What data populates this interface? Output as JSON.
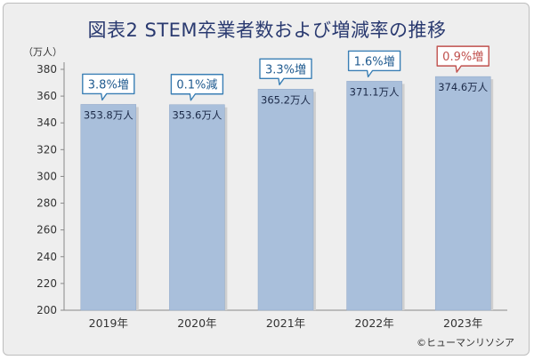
{
  "title": "図表2 STEM卒業者数および増減率の推移",
  "unit_label": "（万人）",
  "credit": "©ヒューマンリソシア",
  "colors": {
    "bar": "#a9bfdb",
    "bar_edge": "#8fa7c8",
    "callout_border": "#3a7fb5",
    "callout_highlight_border": "#c0504d",
    "callout_text": "#1f5a8f",
    "callout_highlight_text": "#c0504d",
    "axis": "#888888",
    "background": "#eeeeee"
  },
  "chart_data": {
    "type": "bar",
    "categories": [
      "2019年",
      "2020年",
      "2021年",
      "2022年",
      "2023年"
    ],
    "values": [
      353.8,
      353.6,
      365.2,
      371.1,
      374.6
    ],
    "value_labels": [
      "353.8万人",
      "353.6万人",
      "365.2万人",
      "371.1万人",
      "374.6万人"
    ],
    "change_labels": [
      "3.8%増",
      "0.1%減",
      "3.3%増",
      "1.6%増",
      "0.9%増"
    ],
    "highlight_index": 4,
    "ylim": [
      200,
      380
    ],
    "yticks": [
      200,
      220,
      240,
      260,
      280,
      300,
      320,
      340,
      360,
      380
    ],
    "ylabel": "（万人）",
    "xlabel": "",
    "grid": false,
    "legend": "none"
  }
}
